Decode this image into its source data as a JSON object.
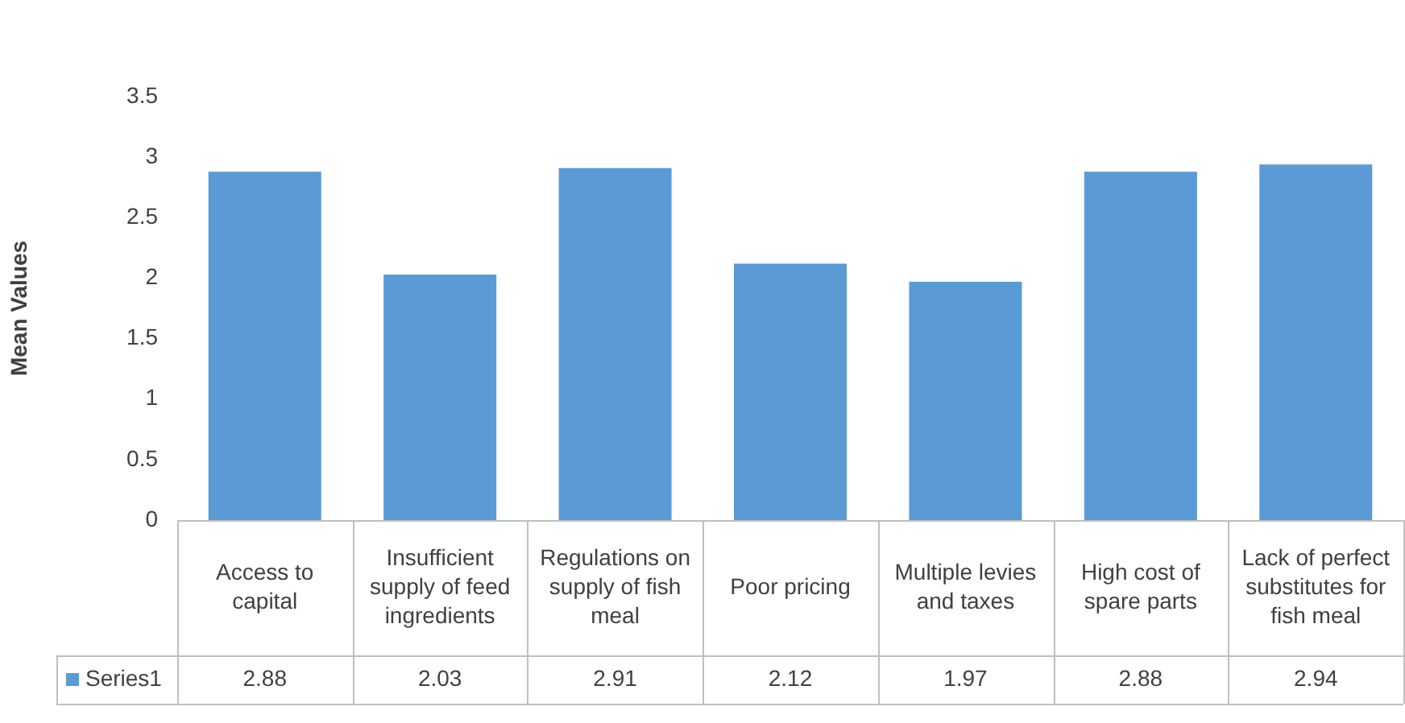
{
  "chart_data": {
    "type": "bar",
    "ylabel": "Mean Values",
    "categories": [
      "Access to capital",
      "Insufficient supply of feed ingredients",
      "Regulations on supply of fish meal",
      "Poor pricing",
      "Multiple levies and taxes",
      "High cost of spare parts",
      "Lack of perfect substitutes for fish meal"
    ],
    "series": [
      {
        "name": "Series1",
        "color": "#5b9bd5",
        "values": [
          2.88,
          2.03,
          2.91,
          2.12,
          1.97,
          2.88,
          2.94
        ]
      }
    ],
    "ylim": [
      0,
      3.5
    ],
    "yticks": [
      0,
      0.5,
      1,
      1.5,
      2,
      2.5,
      3,
      3.5
    ],
    "grid": false,
    "data_labels": true
  }
}
